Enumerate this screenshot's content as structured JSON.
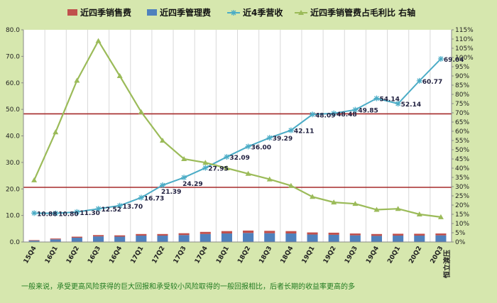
{
  "chart_data": {
    "type": "bar+line",
    "categories": [
      "15Q4",
      "16Q1",
      "16Q2",
      "16Q3",
      "16Q4",
      "17Q1",
      "17Q2",
      "17Q3",
      "17Q4",
      "18Q1",
      "18Q2",
      "18Q3",
      "18Q4",
      "19Q1",
      "19Q2",
      "19Q3",
      "19Q4",
      "20Q1",
      "20Q2",
      "20Q3"
    ],
    "series": [
      {
        "name": "近四季销售费",
        "kind": "bar",
        "axis": "left",
        "color": "#c0504d",
        "values": [
          0.2,
          0.3,
          0.4,
          0.5,
          0.5,
          0.6,
          0.6,
          0.7,
          0.8,
          0.9,
          0.9,
          0.9,
          0.9,
          0.8,
          0.8,
          0.7,
          0.7,
          0.7,
          0.7,
          0.7
        ]
      },
      {
        "name": "近四季管理费",
        "kind": "bar",
        "axis": "left",
        "color": "#4f81bd",
        "values": [
          0.5,
          1.0,
          1.6,
          2.1,
          2.0,
          2.4,
          2.4,
          2.6,
          3.0,
          3.2,
          3.4,
          3.3,
          3.2,
          2.8,
          2.7,
          2.5,
          2.3,
          2.4,
          2.4,
          2.5
        ]
      },
      {
        "name": "近4季营收",
        "kind": "line",
        "axis": "left",
        "color": "#4bacc6",
        "marker": "star",
        "values": [
          10.88,
          10.8,
          11.3,
          12.52,
          13.7,
          16.73,
          21.39,
          24.29,
          27.95,
          32.09,
          36.0,
          39.29,
          42.11,
          48.09,
          48.48,
          49.85,
          54.14,
          52.14,
          60.77,
          69.04
        ],
        "labels": [
          "10.88",
          "10.80",
          "11.30",
          "12.52",
          "13.70",
          "16.73",
          "21.39",
          "24.29",
          "27.95",
          "32.09",
          "36.00",
          "39.29",
          "42.11",
          "48.09",
          "48.48",
          "49.85",
          "54.14",
          "52.14",
          "60.77",
          "69.04"
        ]
      },
      {
        "name": "近四季销管费占毛利比 右轴",
        "kind": "line",
        "axis": "right",
        "color": "#9bbb59",
        "marker": "triangle",
        "values": [
          33.5,
          59.5,
          87.5,
          109,
          90,
          70.5,
          55,
          45,
          43,
          40,
          37,
          34,
          30.5,
          24.5,
          21.5,
          20.7,
          17.5,
          18,
          15,
          13.5
        ]
      }
    ],
    "left_axis": {
      "min": 0,
      "max": 80,
      "step": 10,
      "ticks": [
        "0.0",
        "10.0",
        "20.0",
        "30.0",
        "40.0",
        "50.0",
        "60.0",
        "70.0",
        "80.0"
      ]
    },
    "right_axis": {
      "min": 0,
      "max": 115,
      "step": 5,
      "ticks": [
        "0%",
        "5%",
        "10%",
        "15%",
        "20%",
        "25%",
        "30%",
        "35%",
        "40%",
        "45%",
        "50%",
        "55%",
        "60%",
        "65%",
        "70%",
        "75%",
        "80%",
        "85%",
        "90%",
        "95%",
        "100%",
        "105%",
        "110%",
        "115%"
      ]
    },
    "reference_lines": [
      {
        "axis": "left",
        "value": 48.3,
        "color": "#a52a2a"
      },
      {
        "axis": "left",
        "value": 20.6,
        "color": "#a52a2a"
      }
    ],
    "grid": {
      "vertical": true,
      "horizontal": false
    }
  },
  "footnote": "一般来说，承受更高风险获得的巨大回报和承受较小风险取得的一般回报相比，后者长期的收益率更高的多",
  "source": "恒立渡压"
}
